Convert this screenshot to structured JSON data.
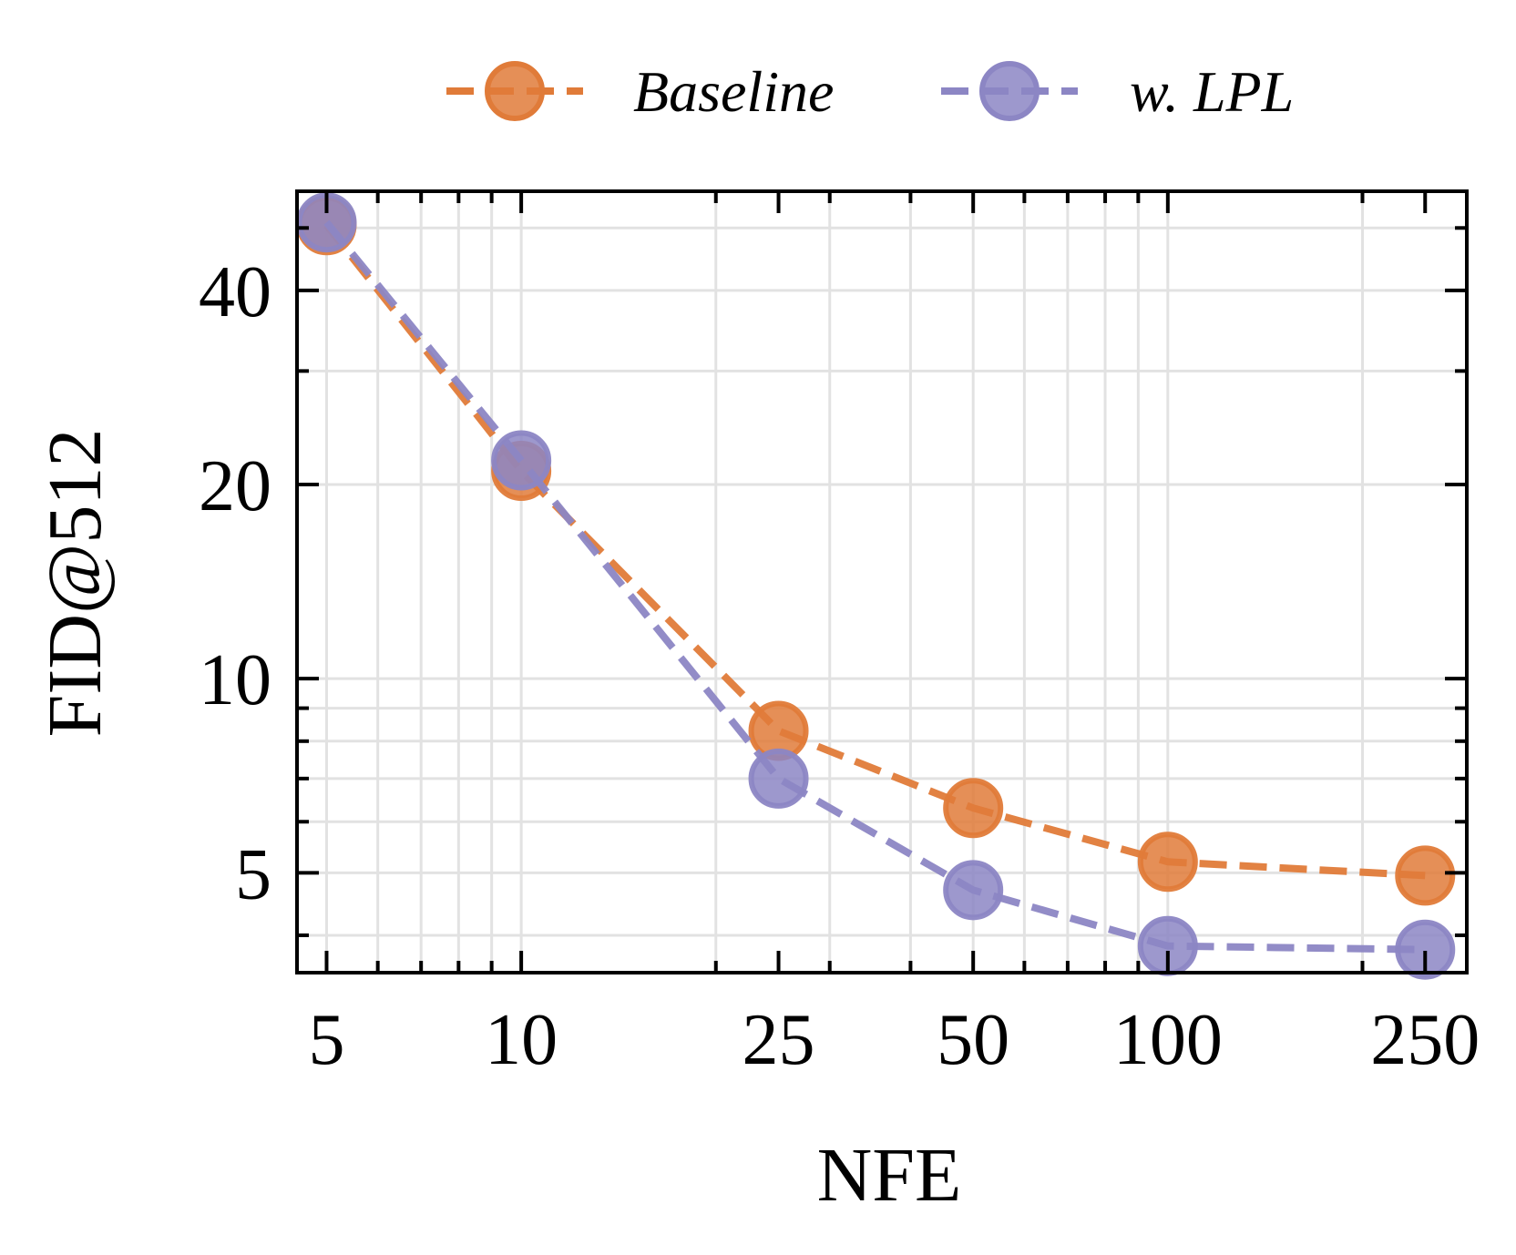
{
  "chart_data": {
    "type": "line",
    "title": "",
    "xlabel": "NFE",
    "ylabel": "FID@512",
    "x_scale": "log",
    "y_scale": "log",
    "xlim": [
      4.5,
      290
    ],
    "ylim": [
      3.5,
      57
    ],
    "x": [
      5,
      10,
      25,
      50,
      100,
      250
    ],
    "x_ticks": [
      5,
      10,
      25,
      50,
      100,
      250
    ],
    "x_tick_labels": [
      "5",
      "10",
      "25",
      "50",
      "100",
      "250"
    ],
    "y_ticks": [
      5,
      10,
      20,
      40
    ],
    "y_tick_labels": [
      "5",
      "10",
      "20",
      "40"
    ],
    "grid": true,
    "legend_position": "top-center",
    "series": [
      {
        "name": "Baseline",
        "color": "#e07b39",
        "values": [
          50.5,
          21.0,
          8.3,
          6.3,
          5.2,
          4.95
        ]
      },
      {
        "name": "w. LPL",
        "color": "#8c86c4",
        "values": [
          51.0,
          21.8,
          7.0,
          4.7,
          3.85,
          3.8
        ]
      }
    ]
  }
}
